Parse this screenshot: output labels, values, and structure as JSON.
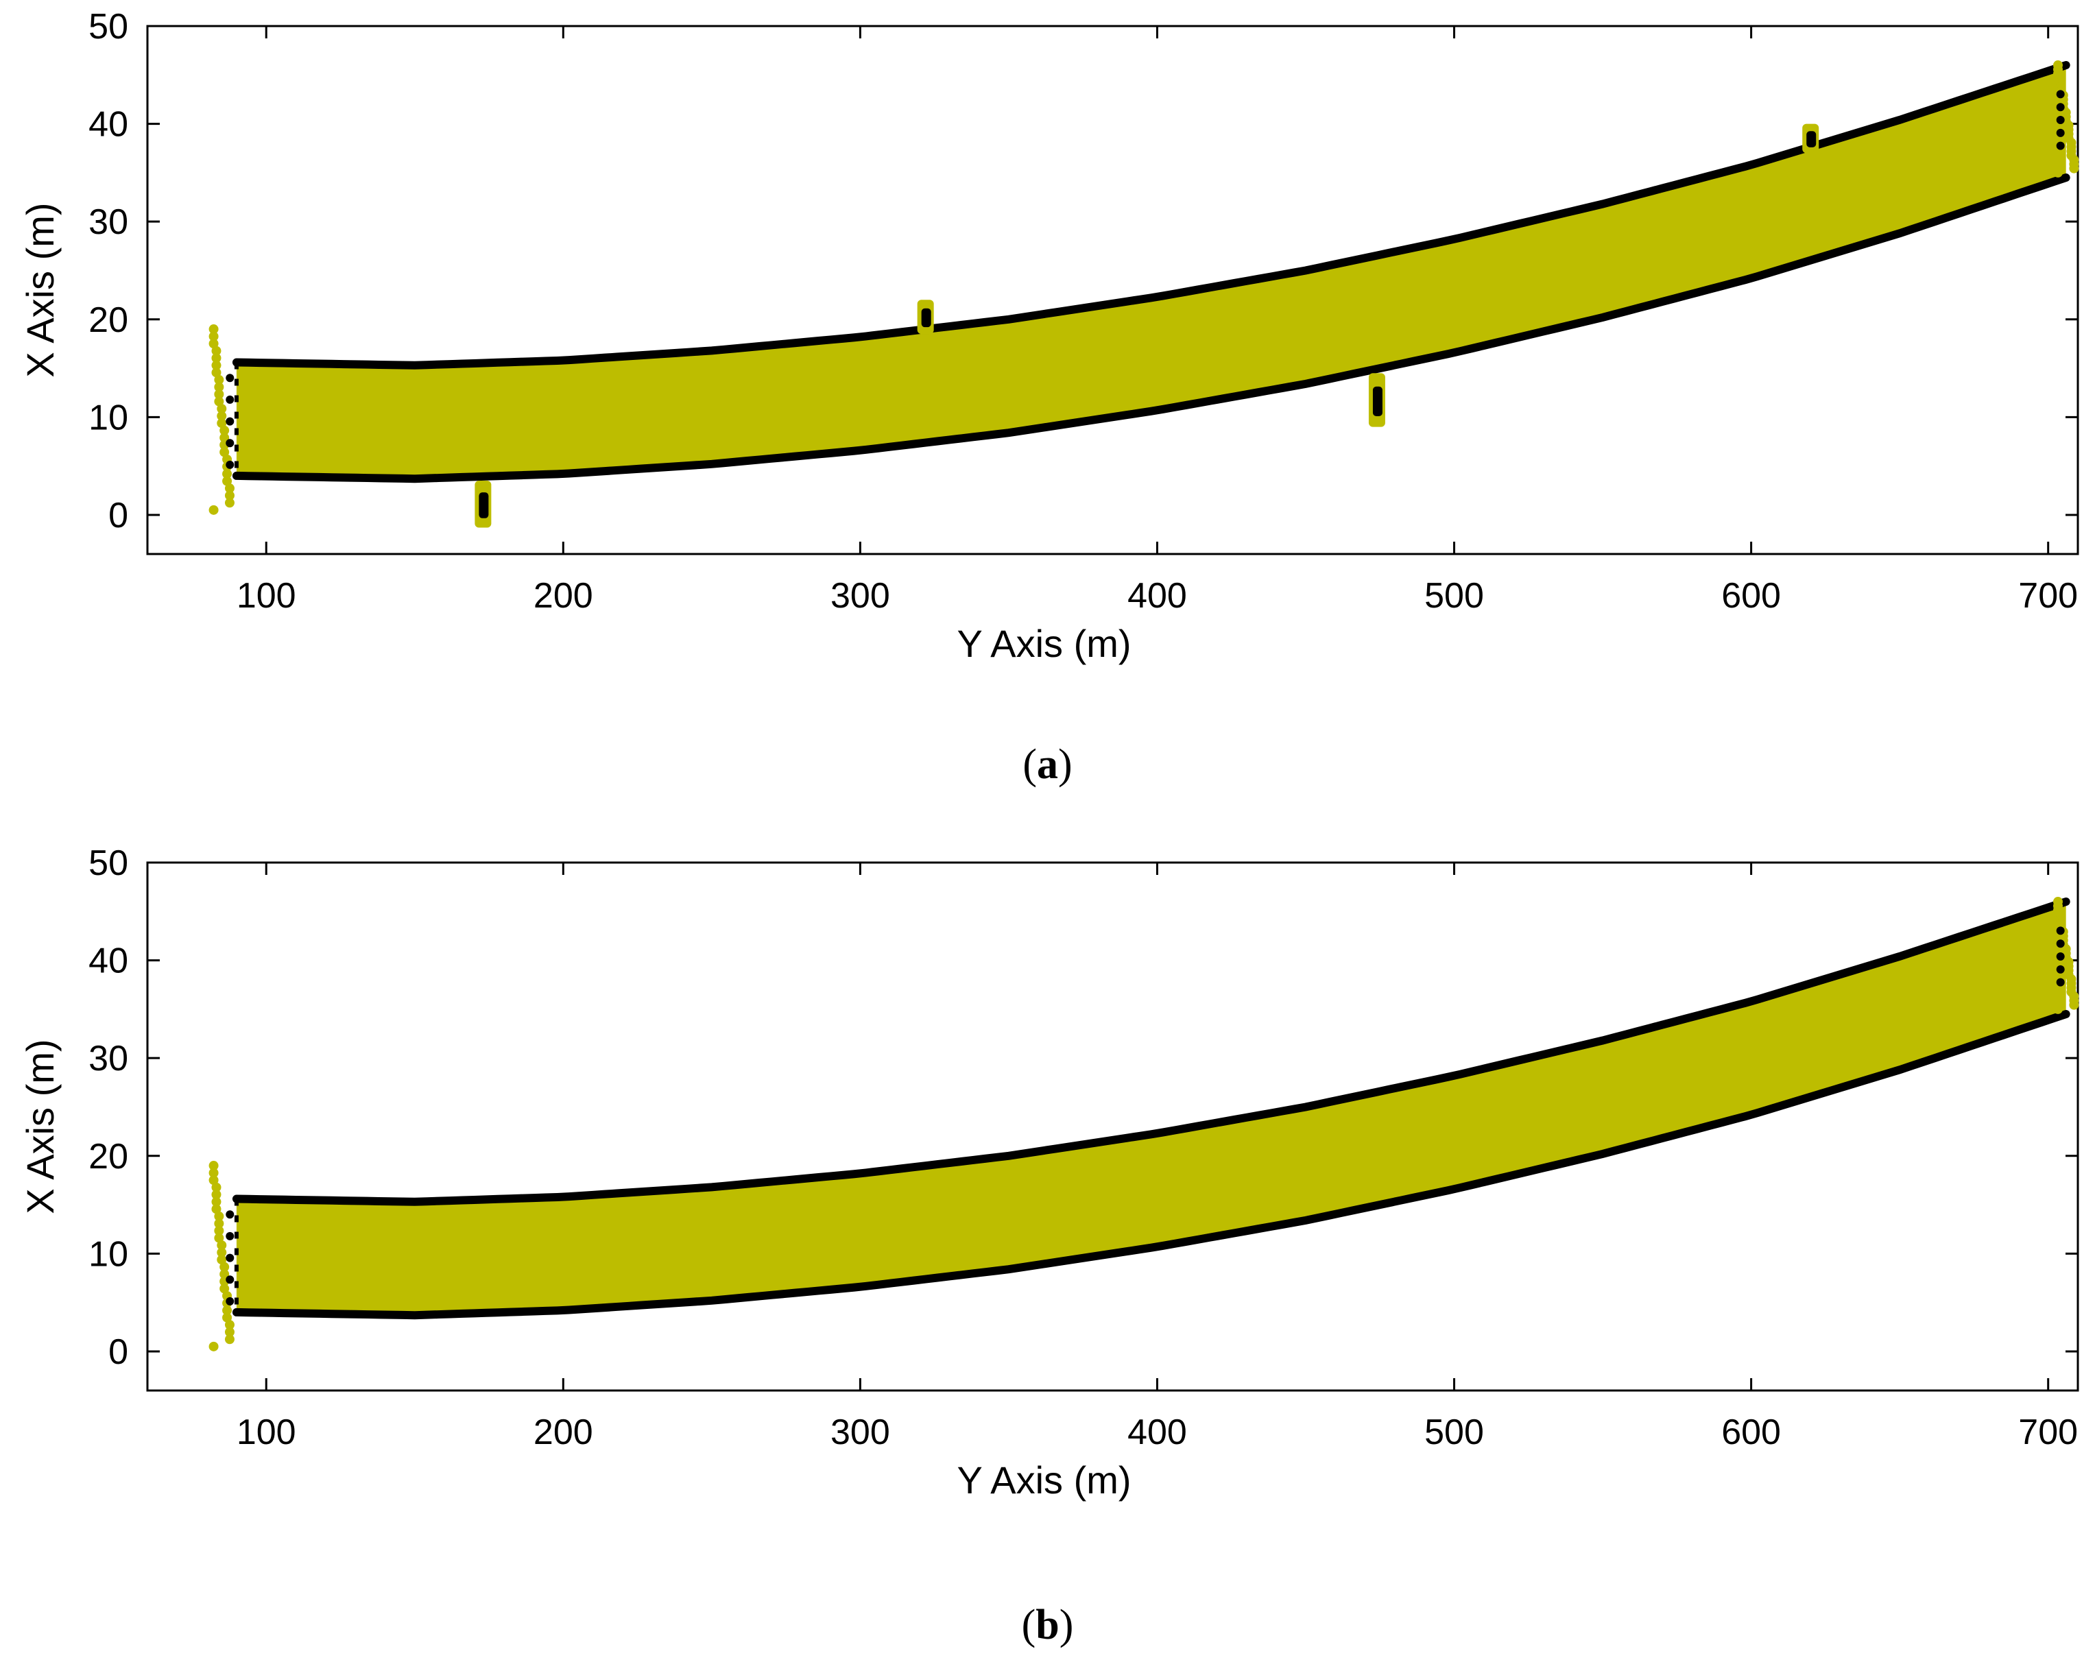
{
  "colors": {
    "band": "#bdbd00",
    "edge": "#000000",
    "axis": "#000000",
    "background": "#ffffff"
  },
  "chart_data": [
    {
      "type": "scatter",
      "panel_label": "a",
      "caption_open": "(",
      "caption_close": ")",
      "xlabel": "Y Axis (m)",
      "ylabel": "X Axis (m)",
      "xlim": [
        60,
        710
      ],
      "ylim": [
        -4,
        50
      ],
      "xticks": [
        100,
        200,
        300,
        400,
        500,
        600,
        700
      ],
      "yticks": [
        0,
        10,
        20,
        30,
        40,
        50
      ],
      "grid": false,
      "series": [
        {
          "name": "upper boundary",
          "x": [
            90,
            150,
            200,
            250,
            300,
            350,
            400,
            450,
            500,
            550,
            600,
            650,
            706
          ],
          "y": [
            15.6,
            15.3,
            15.8,
            16.8,
            18.2,
            20.0,
            22.3,
            25.0,
            28.2,
            31.8,
            35.8,
            40.4,
            46.0
          ]
        },
        {
          "name": "lower boundary",
          "x": [
            90,
            150,
            200,
            250,
            300,
            350,
            400,
            450,
            500,
            550,
            600,
            650,
            706
          ],
          "y": [
            4.0,
            3.7,
            4.2,
            5.2,
            6.6,
            8.4,
            10.7,
            13.4,
            16.6,
            20.2,
            24.2,
            28.8,
            34.5
          ]
        }
      ],
      "outliers": [
        {
          "name": "left end cluster",
          "x": 85,
          "y_range": [
            0.5,
            19
          ]
        },
        {
          "name": "right end cluster",
          "x": 706,
          "y_range": [
            35,
            46
          ]
        },
        {
          "name": "spike 1",
          "x": 173,
          "y_range": [
            -1.3,
            3.5
          ]
        },
        {
          "name": "spike 2",
          "x": 322,
          "y_range": [
            18.5,
            22
          ]
        },
        {
          "name": "spike 3",
          "x": 474,
          "y_range": [
            9,
            14.5
          ]
        },
        {
          "name": "spike 4",
          "x": 620,
          "y_range": [
            37,
            40
          ]
        }
      ]
    },
    {
      "type": "scatter",
      "panel_label": "b",
      "caption_open": "(",
      "caption_close": ")",
      "xlabel": "Y Axis (m)",
      "ylabel": "X Axis (m)",
      "xlim": [
        60,
        710
      ],
      "ylim": [
        -4,
        50
      ],
      "xticks": [
        100,
        200,
        300,
        400,
        500,
        600,
        700
      ],
      "yticks": [
        0,
        10,
        20,
        30,
        40,
        50
      ],
      "grid": false,
      "series": [
        {
          "name": "upper boundary",
          "x": [
            90,
            150,
            200,
            250,
            300,
            350,
            400,
            450,
            500,
            550,
            600,
            650,
            706
          ],
          "y": [
            15.6,
            15.3,
            15.8,
            16.8,
            18.2,
            20.0,
            22.3,
            25.0,
            28.2,
            31.8,
            35.8,
            40.4,
            46.0
          ]
        },
        {
          "name": "lower boundary",
          "x": [
            90,
            150,
            200,
            250,
            300,
            350,
            400,
            450,
            500,
            550,
            600,
            650,
            706
          ],
          "y": [
            4.0,
            3.7,
            4.2,
            5.2,
            6.6,
            8.4,
            10.7,
            13.4,
            16.6,
            20.2,
            24.2,
            28.8,
            34.5
          ]
        }
      ],
      "outliers": [
        {
          "name": "left end cluster",
          "x": 85,
          "y_range": [
            0.5,
            19
          ]
        },
        {
          "name": "right end cluster",
          "x": 706,
          "y_range": [
            35,
            46
          ]
        }
      ]
    }
  ]
}
